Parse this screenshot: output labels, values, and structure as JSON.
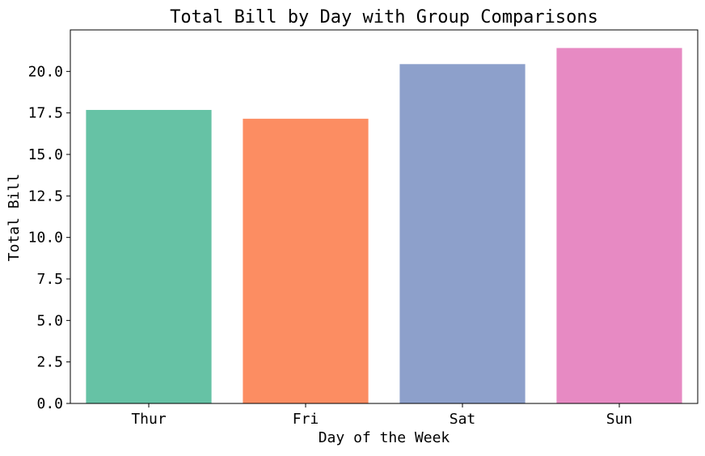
{
  "chart_data": {
    "type": "bar",
    "title": "Total Bill by Day with Group Comparisons",
    "xlabel": "Day of the Week",
    "ylabel": "Total Bill",
    "categories": [
      "Thur",
      "Fri",
      "Sat",
      "Sun"
    ],
    "values": [
      17.68,
      17.15,
      20.44,
      21.41
    ],
    "colors": [
      "#66c2a5",
      "#fc8d62",
      "#8da0cb",
      "#e78ac3"
    ],
    "ylim": [
      0,
      22.5
    ],
    "y_ticks": [
      0.0,
      2.5,
      5.0,
      7.5,
      10.0,
      12.5,
      15.0,
      17.5,
      20.0
    ],
    "y_tick_labels": [
      "0.0",
      "2.5",
      "5.0",
      "7.5",
      "10.0",
      "12.5",
      "15.0",
      "17.5",
      "20.0"
    ],
    "grid": false,
    "legend": "none"
  }
}
